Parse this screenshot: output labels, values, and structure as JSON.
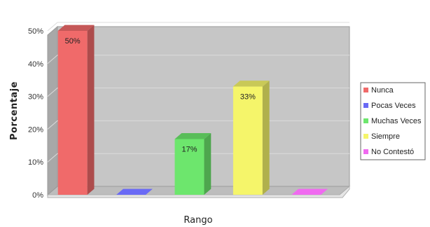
{
  "chart_data": {
    "type": "bar",
    "title": "",
    "xlabel": "Rango",
    "ylabel": "Porcentaje",
    "categories": [
      "Nunca",
      "Pocas Veces",
      "Muchas Veces",
      "Siempre",
      "No Contestó"
    ],
    "values": [
      50,
      0,
      17,
      33,
      0
    ],
    "data_labels": [
      "50%",
      "",
      "17%",
      "33%",
      ""
    ],
    "colors": [
      "#f06a6a",
      "#6a6af5",
      "#6de66d",
      "#f5f56a",
      "#f06af0"
    ],
    "yticks": [
      "0%",
      "10%",
      "20%",
      "30%",
      "40%",
      "50%"
    ],
    "ylim": [
      0,
      50
    ],
    "grid": true,
    "legend_position": "right",
    "legend": [
      "Nunca",
      "Pocas Veces",
      "Muchas Veces",
      "Siempre",
      "No Contestó"
    ],
    "style": "3d"
  }
}
